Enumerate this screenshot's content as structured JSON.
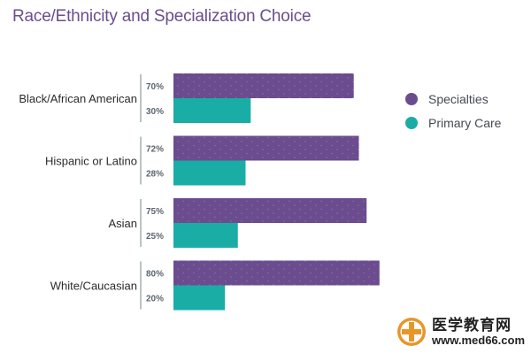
{
  "chart_data": {
    "type": "bar",
    "orientation": "horizontal",
    "title": "Race/Ethnicity and Specialization Choice",
    "categories": [
      "Black/African American",
      "Hispanic or Latino",
      "Asian",
      "White/Caucasian"
    ],
    "series": [
      {
        "name": "Specialties",
        "values": [
          70,
          72,
          75,
          80
        ],
        "labels": [
          "70%",
          "72%",
          "75%",
          "80%"
        ],
        "color": "#6b4c8f"
      },
      {
        "name": "Primary Care",
        "values": [
          30,
          28,
          25,
          20
        ],
        "labels": [
          "30%",
          "28%",
          "25%",
          "20%"
        ],
        "color": "#1aada6"
      }
    ],
    "xlim": [
      0,
      100
    ],
    "xlabel": "",
    "ylabel": "",
    "grid": false,
    "legend_position": "right"
  },
  "legend": {
    "items": [
      {
        "label": "Specialties",
        "color": "#6b4c8f"
      },
      {
        "label": "Primary Care",
        "color": "#1aada6"
      }
    ]
  },
  "watermark": {
    "text_cn": "医学教育网",
    "url": "www.med66.com"
  }
}
